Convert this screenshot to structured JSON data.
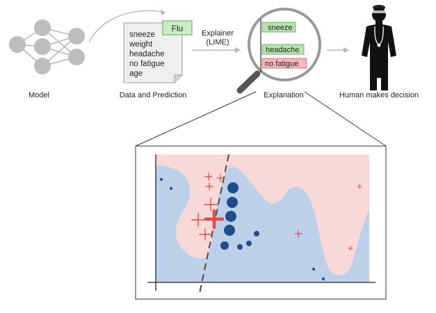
{
  "pipeline": {
    "model": {
      "label": "Model"
    },
    "data": {
      "label": "Data and Prediction",
      "prediction": "Flu",
      "features": [
        "sneeze",
        "weight",
        "headache",
        "no fatigue",
        "age"
      ]
    },
    "explainer": {
      "line1": "Explainer",
      "line2": "(LIME)"
    },
    "explanation": {
      "label": "Explanation",
      "items": [
        {
          "text": "sneeze",
          "color": "#b6e3b0"
        },
        {
          "text": "headache",
          "color": "#b6e3b0"
        },
        {
          "text": "no fatigue",
          "color": "#f6b7bd"
        }
      ]
    },
    "human": {
      "label": "Human makes decision"
    }
  },
  "colors": {
    "node": "#bdbdbd",
    "background_region": "#bcd0e9",
    "pink_region": "#f9d8d8",
    "plus": "#e34a4a",
    "dot": "#1f4e8c",
    "arrow": "#b5b5b5"
  }
}
